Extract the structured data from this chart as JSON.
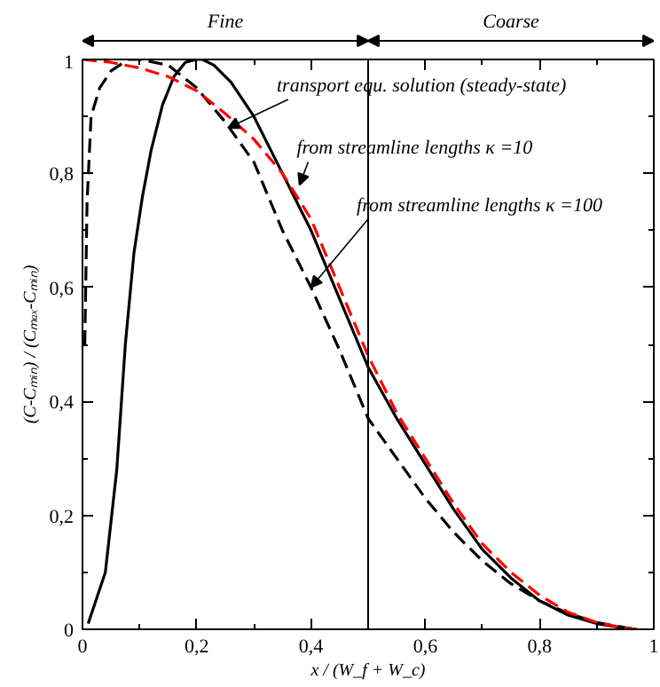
{
  "chart_data": {
    "type": "line",
    "xlabel": "x / (W_f + W_c)",
    "ylabel": "(C-Cₘᵢₙ) / (Cₘₐₓ-Cₘᵢₙ)",
    "xlim": [
      0,
      1
    ],
    "ylim": [
      0,
      1
    ],
    "xticks": [
      0,
      {
        "value": 0.2,
        "label": "0,2"
      },
      {
        "value": 0.4,
        "label": "0,4"
      },
      {
        "value": 0.6,
        "label": "0,6"
      },
      {
        "value": 0.8,
        "label": "0,8"
      },
      1
    ],
    "yticks": [
      0,
      {
        "value": 0.2,
        "label": "0,2"
      },
      {
        "value": 0.4,
        "label": "0,4"
      },
      {
        "value": 0.6,
        "label": "0,6"
      },
      {
        "value": 0.8,
        "label": "0,8"
      },
      1
    ],
    "grid": false,
    "series": [
      {
        "color": "#000000",
        "line_style": "solid",
        "x": [
          0.01,
          0.04,
          0.06,
          0.075,
          0.09,
          0.105,
          0.12,
          0.14,
          0.16,
          0.18,
          0.2,
          0.21,
          0.23,
          0.26,
          0.3,
          0.35,
          0.4,
          0.45,
          0.5,
          0.55,
          0.6,
          0.65,
          0.7,
          0.75,
          0.8,
          0.85,
          0.9,
          0.95,
          0.97
        ],
        "values": [
          0.01,
          0.1,
          0.28,
          0.5,
          0.66,
          0.76,
          0.84,
          0.92,
          0.97,
          0.995,
          1.0,
          1.0,
          0.99,
          0.96,
          0.9,
          0.8,
          0.7,
          0.58,
          0.46,
          0.37,
          0.29,
          0.21,
          0.14,
          0.09,
          0.05,
          0.025,
          0.01,
          0.002,
          0.0
        ]
      },
      {
        "color": "#000000",
        "line_style": "dashed",
        "x": [
          0.004,
          0.008,
          0.015,
          0.03,
          0.05,
          0.08,
          0.1,
          0.15,
          0.2,
          0.25,
          0.3,
          0.35,
          0.4,
          0.45,
          0.5,
          0.55,
          0.6,
          0.65,
          0.7,
          0.75,
          0.8,
          0.85,
          0.9,
          0.95,
          0.97
        ],
        "values": [
          0.5,
          0.75,
          0.9,
          0.95,
          0.98,
          1.0,
          1.0,
          0.99,
          0.95,
          0.89,
          0.82,
          0.7,
          0.6,
          0.49,
          0.37,
          0.3,
          0.23,
          0.17,
          0.12,
          0.08,
          0.05,
          0.028,
          0.012,
          0.003,
          0.0
        ]
      },
      {
        "color": "#ff0000",
        "line_style": "dashed",
        "x": [
          0.0,
          0.05,
          0.1,
          0.15,
          0.2,
          0.25,
          0.3,
          0.35,
          0.4,
          0.45,
          0.5,
          0.55,
          0.6,
          0.65,
          0.7,
          0.75,
          0.8,
          0.85,
          0.9,
          0.95,
          0.97
        ],
        "values": [
          1.0,
          0.995,
          0.985,
          0.97,
          0.945,
          0.905,
          0.86,
          0.8,
          0.72,
          0.6,
          0.48,
          0.38,
          0.3,
          0.22,
          0.15,
          0.1,
          0.06,
          0.03,
          0.012,
          0.002,
          0.0
        ]
      }
    ],
    "ref_lines": [
      {
        "axis": "x",
        "value": 0.5,
        "color": "#000000"
      }
    ],
    "annotations": [
      "Fine",
      "Coarse",
      {
        "text": "transport equ. solution (steady-state)",
        "x": 0.255,
        "y": 0.88
      },
      {
        "text": "from streamline lengths κ =10",
        "x": 0.38,
        "y": 0.78
      },
      {
        "text": "from streamline lengths κ =100",
        "x": 0.4,
        "y": 0.6
      }
    ]
  }
}
